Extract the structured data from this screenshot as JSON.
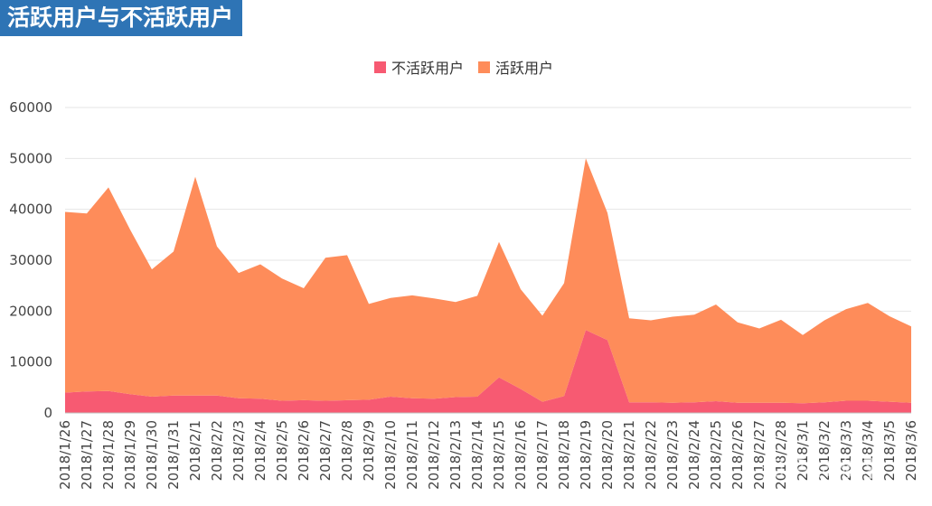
{
  "title": "活跃用户与不活跃用户",
  "watermark": "知乎 @佛羽",
  "chart_data": {
    "type": "area",
    "stacked": true,
    "legend_position": "top-center",
    "grid": true,
    "ylim": [
      0,
      60000
    ],
    "yticks": [
      0,
      10000,
      20000,
      30000,
      40000,
      50000,
      60000
    ],
    "categories": [
      "2018/1/26",
      "2018/1/27",
      "2018/1/28",
      "2018/1/29",
      "2018/1/30",
      "2018/1/31",
      "2018/2/1",
      "2018/2/2",
      "2018/2/3",
      "2018/2/4",
      "2018/2/5",
      "2018/2/6",
      "2018/2/7",
      "2018/2/8",
      "2018/2/9",
      "2018/2/10",
      "2018/2/11",
      "2018/2/12",
      "2018/2/13",
      "2018/2/14",
      "2018/2/15",
      "2018/2/16",
      "2018/2/17",
      "2018/2/18",
      "2018/2/19",
      "2018/2/20",
      "2018/2/21",
      "2018/2/22",
      "2018/2/23",
      "2018/2/24",
      "2018/2/25",
      "2018/2/26",
      "2018/2/27",
      "2018/2/28",
      "2018/3/1",
      "2018/3/2",
      "2018/3/3",
      "2018/3/4",
      "2018/3/5",
      "2018/3/6"
    ],
    "series": [
      {
        "name": "不活跃用户",
        "color": "#f75a72",
        "values": [
          4000,
          4200,
          4300,
          3700,
          3200,
          3400,
          3400,
          3400,
          2900,
          2800,
          2400,
          2500,
          2400,
          2500,
          2600,
          3200,
          2900,
          2800,
          3100,
          3200,
          7000,
          4700,
          2200,
          3300,
          16300,
          14300,
          2100,
          2100,
          2000,
          2100,
          2300,
          2000,
          2000,
          2000,
          1900,
          2100,
          2400,
          2400,
          2200,
          2000
        ]
      },
      {
        "name": "活跃用户",
        "color": "#fe8c5a",
        "values": [
          35500,
          35000,
          40000,
          32300,
          25000,
          28300,
          43000,
          29300,
          24600,
          26400,
          24000,
          22000,
          28100,
          28500,
          18800,
          19400,
          20200,
          19700,
          18700,
          19800,
          26600,
          19600,
          16900,
          22200,
          33700,
          25000,
          16500,
          16100,
          16900,
          17200,
          19000,
          15800,
          14600,
          16300,
          13400,
          16100,
          18000,
          19200,
          16800,
          15000
        ]
      }
    ]
  }
}
